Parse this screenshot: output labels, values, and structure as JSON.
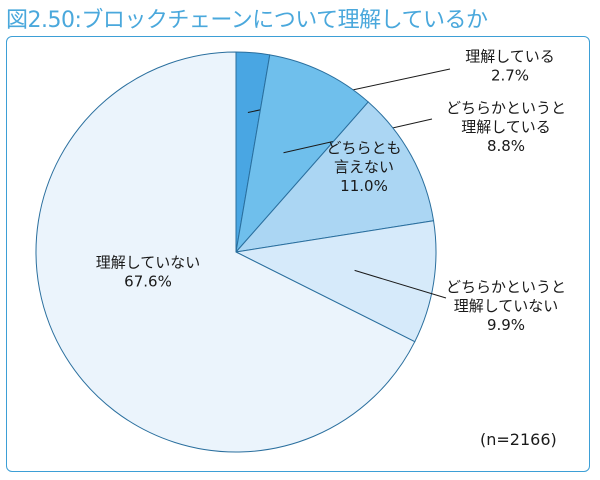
{
  "title": "図2.50:ブロックチェーンについて理解しているか",
  "note": "(n=2166)",
  "colors": {
    "accent": "#3d9fd6",
    "slices": [
      "#49a6e3",
      "#6fbfec",
      "#abd6f3",
      "#d6eafa",
      "#ebf4fc"
    ]
  },
  "chart_data": {
    "type": "pie",
    "title": "図2.50:ブロックチェーンについて理解しているか",
    "sample_size": "(n=2166)",
    "start": "12 o'clock",
    "direction": "clockwise",
    "slices": [
      {
        "label": [
          "理解している"
        ],
        "value": 2.7,
        "value_label": "2.7%"
      },
      {
        "label": [
          "どちらかというと",
          "理解している"
        ],
        "value": 8.8,
        "value_label": "8.8%"
      },
      {
        "label": [
          "どちらとも",
          "言えない"
        ],
        "value": 11.0,
        "value_label": "11.0%"
      },
      {
        "label": [
          "どちらかというと",
          "理解していない"
        ],
        "value": 9.9,
        "value_label": "9.9%"
      },
      {
        "label": [
          "理解していない"
        ],
        "value": 67.6,
        "value_label": "67.6%"
      }
    ]
  }
}
